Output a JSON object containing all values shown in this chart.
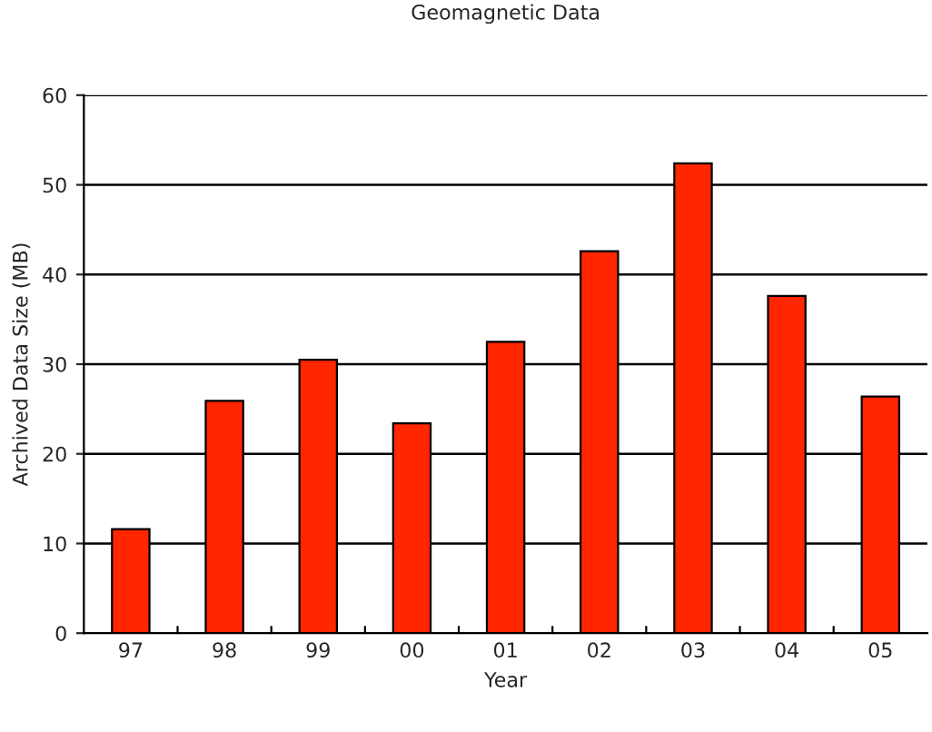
{
  "chart_data": {
    "type": "bar",
    "title": "Geomagnetic Data",
    "xlabel": "Year",
    "ylabel": "Archived Data Size (MB)",
    "categories": [
      "97",
      "98",
      "99",
      "00",
      "01",
      "02",
      "03",
      "04",
      "05"
    ],
    "values": [
      11.6,
      25.9,
      30.5,
      23.4,
      32.5,
      42.6,
      52.4,
      37.6,
      26.4
    ],
    "color": "#ff2600",
    "ylim": [
      0,
      60
    ],
    "yticks": [
      0,
      10,
      20,
      30,
      40,
      50,
      60
    ],
    "grid": "y"
  }
}
